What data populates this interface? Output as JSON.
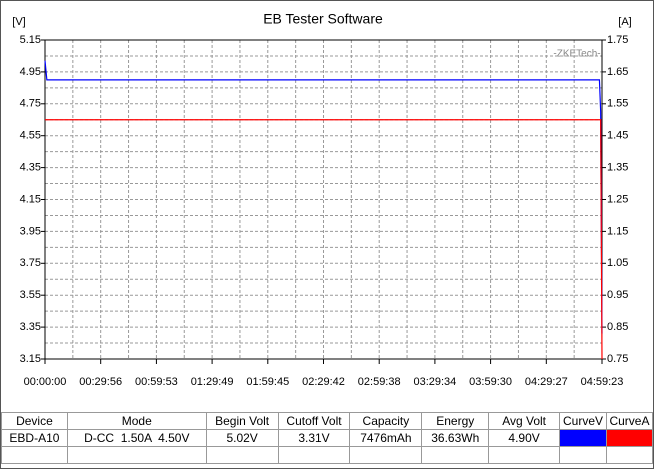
{
  "chart_data": {
    "type": "line",
    "title": "EB Tester Software",
    "y_label": "[V]",
    "y2_label": "[A]",
    "annotation": "-ZKETech-",
    "x": [
      0,
      60,
      17880,
      17920,
      17963
    ],
    "xlim": [
      0,
      17963
    ],
    "xticks": [
      {
        "value": 0,
        "label": "00:00:00"
      },
      {
        "value": 1796,
        "label": "00:29:56"
      },
      {
        "value": 3593,
        "label": "00:59:53"
      },
      {
        "value": 5389,
        "label": "01:29:49"
      },
      {
        "value": 7185,
        "label": "01:59:45"
      },
      {
        "value": 8982,
        "label": "02:29:42"
      },
      {
        "value": 10778,
        "label": "02:59:38"
      },
      {
        "value": 12574,
        "label": "03:29:34"
      },
      {
        "value": 14370,
        "label": "03:59:30"
      },
      {
        "value": 16167,
        "label": "04:29:27"
      },
      {
        "value": 17963,
        "label": "04:59:23"
      }
    ],
    "ylim": [
      3.15,
      5.15
    ],
    "yticks": [
      3.15,
      3.35,
      3.55,
      3.75,
      3.95,
      4.15,
      4.35,
      4.55,
      4.75,
      4.95,
      5.15
    ],
    "y2lim": [
      0.75,
      1.75
    ],
    "y2ticks": [
      0.75,
      0.85,
      0.95,
      1.05,
      1.15,
      1.25,
      1.35,
      1.45,
      1.55,
      1.65,
      1.75
    ],
    "grid": true,
    "series": [
      {
        "color": "#0000ff",
        "values": [
          5.02,
          4.9,
          4.9,
          4.7,
          3.31
        ]
      },
      {
        "color": "#ff0000",
        "axis": "y2",
        "values": [
          1.5,
          1.5,
          1.5,
          1.5,
          0.75
        ]
      }
    ]
  },
  "table": {
    "headers": [
      "Device",
      "Mode",
      "Begin Volt",
      "Cutoff Volt",
      "Capacity",
      "Energy",
      "Avg Volt",
      "CurveV",
      "CurveA"
    ],
    "rows": [
      [
        "EBD-A10",
        "D-CC  1.50A  4.50V",
        "5.02V",
        "3.31V",
        "7476mAh",
        "36.63Wh",
        "4.90V"
      ]
    ]
  }
}
